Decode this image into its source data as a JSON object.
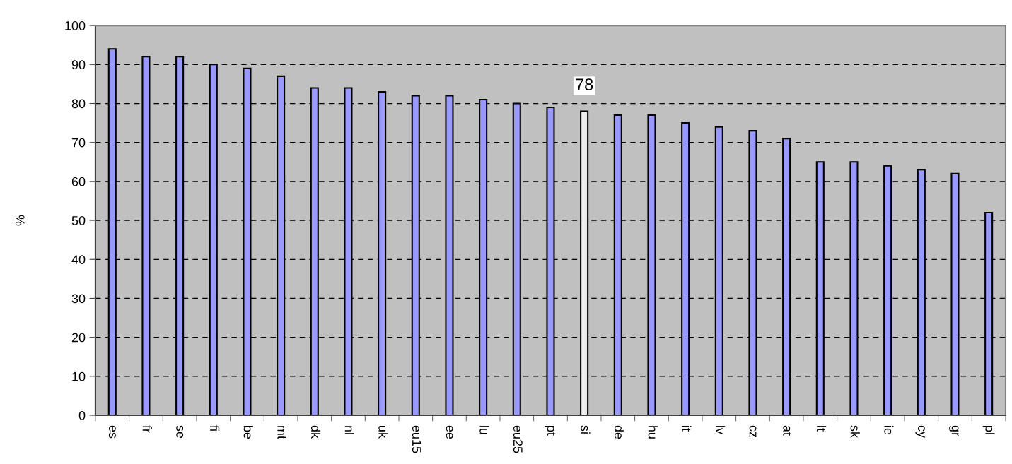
{
  "chart_data": {
    "type": "bar",
    "ylabel": "%",
    "categories": [
      "es",
      "fr",
      "se",
      "fi",
      "be",
      "mt",
      "dk",
      "nl",
      "uk",
      "eu15",
      "ee",
      "lu",
      "eu25",
      "pt",
      "si",
      "de",
      "hu",
      "it",
      "lv",
      "cz",
      "at",
      "lt",
      "sk",
      "ie",
      "cy",
      "gr",
      "pl"
    ],
    "values": [
      94,
      92,
      92,
      90,
      89,
      87,
      84,
      84,
      83,
      82,
      82,
      81,
      80,
      79,
      78,
      77,
      77,
      75,
      74,
      73,
      71,
      65,
      65,
      64,
      63,
      62,
      52
    ],
    "colors": [
      "#9999ff",
      "#9999ff",
      "#9999ff",
      "#9999ff",
      "#9999ff",
      "#9999ff",
      "#9999ff",
      "#9999ff",
      "#9999ff",
      "#9999ff",
      "#9999ff",
      "#9999ff",
      "#9999ff",
      "#9999ff",
      "#eeeeee",
      "#9999ff",
      "#9999ff",
      "#9999ff",
      "#9999ff",
      "#9999ff",
      "#9999ff",
      "#9999ff",
      "#9999ff",
      "#9999ff",
      "#9999ff",
      "#9999ff",
      "#9999ff"
    ],
    "value_labels": [
      null,
      null,
      null,
      null,
      null,
      null,
      null,
      null,
      null,
      null,
      null,
      null,
      null,
      null,
      "78",
      null,
      null,
      null,
      null,
      null,
      null,
      null,
      null,
      null,
      null,
      null,
      null
    ],
    "ylim": [
      0,
      100
    ],
    "yticks": [
      0,
      10,
      20,
      30,
      40,
      50,
      60,
      70,
      80,
      90,
      100
    ],
    "grid": "y"
  }
}
